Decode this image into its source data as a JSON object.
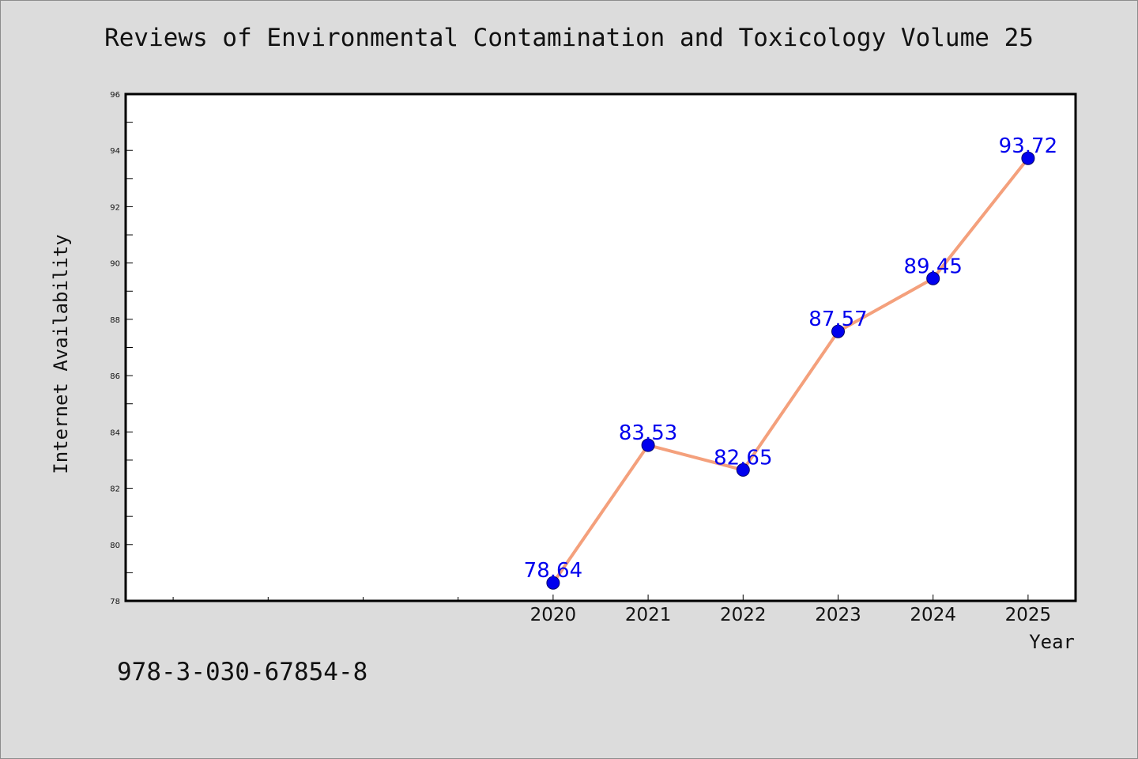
{
  "chart_data": {
    "type": "line",
    "title": "Reviews of Environmental Contamination and Toxicology Volume 25",
    "xlabel": "Year",
    "ylabel": "Internet Availability",
    "x": [
      2020,
      2021,
      2022,
      2023,
      2024,
      2025
    ],
    "x_tick_labels": [
      "2020",
      "2021",
      "2022",
      "2023",
      "2024",
      "2025"
    ],
    "series": [
      {
        "values": [
          78.64,
          83.53,
          82.65,
          87.57,
          89.45,
          93.72
        ],
        "labels": [
          "78.64",
          "83.53",
          "82.65",
          "87.57",
          "89.45",
          "93.72"
        ]
      }
    ],
    "ylim": [
      78,
      96
    ],
    "y_ticks": [
      78,
      80,
      82,
      84,
      86,
      88,
      90,
      92,
      94,
      96
    ],
    "y_tick_labels": [
      "78",
      "80",
      "82",
      "84",
      "86",
      "88",
      "90",
      "92",
      "94",
      "96"
    ],
    "grid": false,
    "legend": "none",
    "colors": {
      "line": "#f4a07c",
      "marker": "#0000ee",
      "label": "#0000ee",
      "axes": "#000000",
      "background": "#dcdcdc",
      "plot_area": "#ffffff"
    }
  },
  "footer": {
    "isbn": "978-3-030-67854-8"
  }
}
